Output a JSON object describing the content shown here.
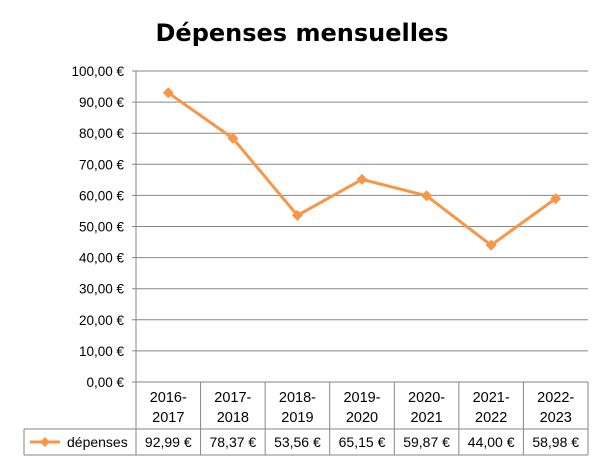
{
  "chart_data": {
    "type": "line",
    "title": "Dépenses mensuelles",
    "categories": [
      "2016-2017",
      "2017-2018",
      "2018-2019",
      "2019-2020",
      "2020-2021",
      "2021-2022",
      "2022-2023"
    ],
    "category_lines": [
      [
        "2016-",
        "2017"
      ],
      [
        "2017-",
        "2018"
      ],
      [
        "2018-",
        "2019"
      ],
      [
        "2019-",
        "2020"
      ],
      [
        "2020-",
        "2021"
      ],
      [
        "2021-",
        "2022"
      ],
      [
        "2022-",
        "2023"
      ]
    ],
    "series": [
      {
        "name": "dépenses",
        "values": [
          92.99,
          78.37,
          53.56,
          65.15,
          59.87,
          44.0,
          58.98
        ],
        "labels": [
          "92,99 €",
          "78,37 €",
          "53,56 €",
          "65,15 €",
          "59,87 €",
          "44,00 €",
          "58,98 €"
        ],
        "color": "#F79646",
        "marker": "diamond"
      }
    ],
    "ylim": [
      0,
      100
    ],
    "ytick_step": 10,
    "ytick_labels": [
      "0,00 €",
      "10,00 €",
      "20,00 €",
      "30,00 €",
      "40,00 €",
      "50,00 €",
      "60,00 €",
      "70,00 €",
      "80,00 €",
      "90,00 €",
      "100,00 €"
    ],
    "grid": true,
    "legend": "data-table",
    "gridline_color": "#868686"
  }
}
